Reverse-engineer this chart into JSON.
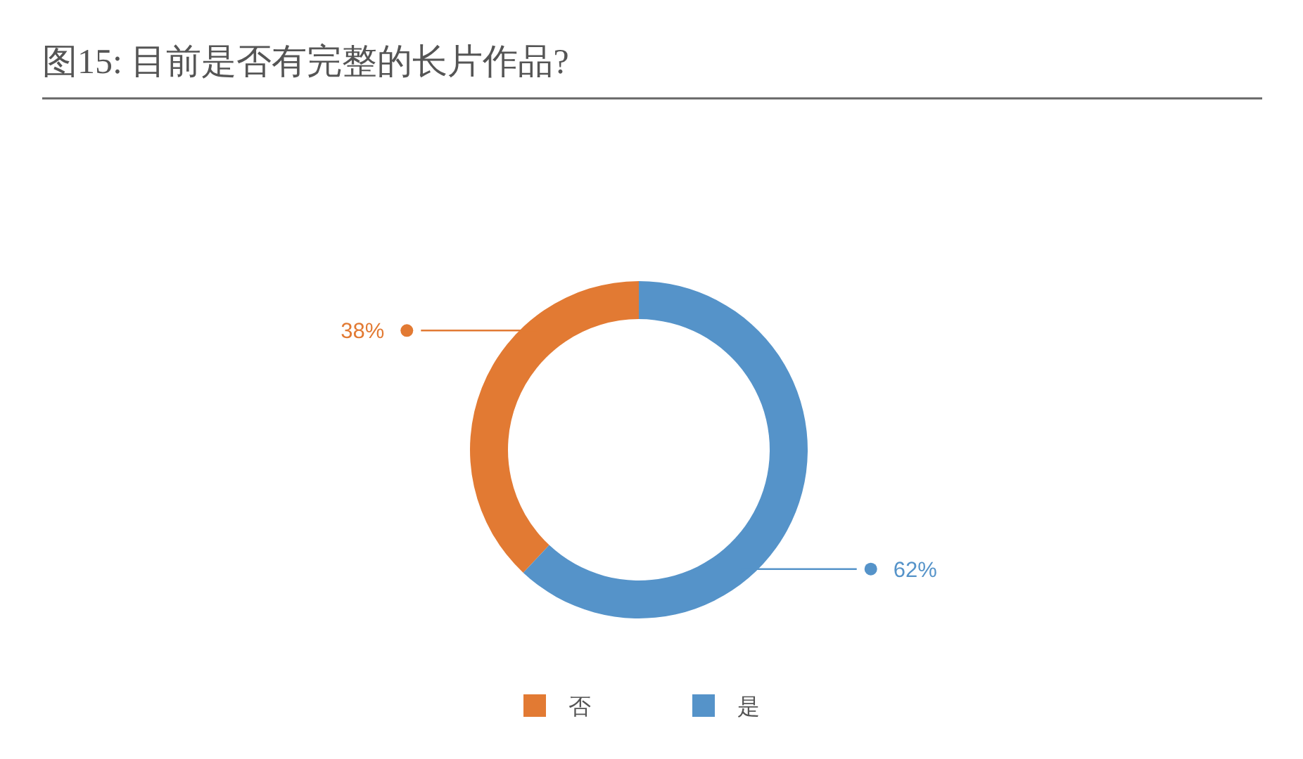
{
  "chart_data": {
    "type": "donut",
    "title": "图15: 目前是否有完整的长片作品?",
    "categories": [
      "否",
      "是"
    ],
    "values": [
      38,
      62
    ],
    "colors": [
      "#e27a33",
      "#5593c9"
    ],
    "value_labels": [
      "38%",
      "62%"
    ],
    "legend": "bottom"
  }
}
